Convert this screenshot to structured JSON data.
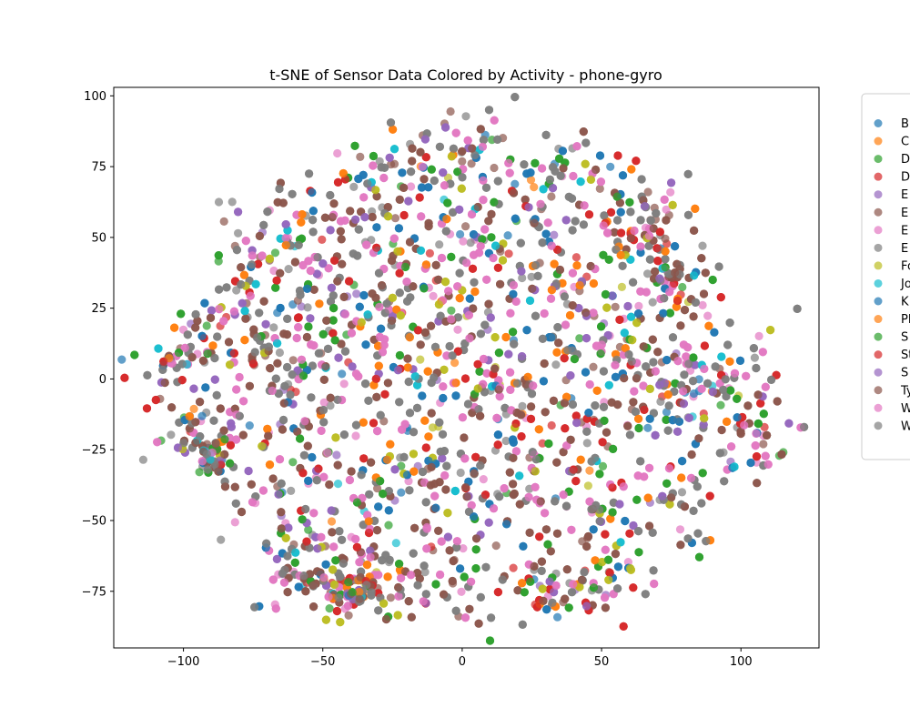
{
  "chart_data": {
    "type": "scatter",
    "title": "t-SNE of Sensor Data Colored by Activity - phone-gyro",
    "xlabel": "",
    "ylabel": "",
    "xlim": [
      -125,
      128
    ],
    "ylim": [
      -95,
      103
    ],
    "xticks": [
      -100,
      -50,
      0,
      50,
      100
    ],
    "yticks": [
      -75,
      -50,
      -25,
      0,
      25,
      50,
      75,
      100
    ],
    "grid": false,
    "legend_position": "right, partially cropped",
    "series": [
      {
        "name": "B",
        "color": "#1f77b4"
      },
      {
        "name": "C",
        "color": "#ff7f0e"
      },
      {
        "name": "D",
        "color": "#2ca02c"
      },
      {
        "name": "D",
        "color": "#d62728"
      },
      {
        "name": "E",
        "color": "#9467bd"
      },
      {
        "name": "E",
        "color": "#8c564b"
      },
      {
        "name": "E",
        "color": "#e377c2"
      },
      {
        "name": "E",
        "color": "#7f7f7f"
      },
      {
        "name": "Fo",
        "color": "#bcbd22"
      },
      {
        "name": "Jo",
        "color": "#17becf"
      },
      {
        "name": "K",
        "color": "#1f77b4"
      },
      {
        "name": "Pl",
        "color": "#ff7f0e"
      },
      {
        "name": "S",
        "color": "#2ca02c"
      },
      {
        "name": "St",
        "color": "#d62728"
      },
      {
        "name": "S",
        "color": "#9467bd"
      },
      {
        "name": "Ty",
        "color": "#8c564b"
      },
      {
        "name": "W",
        "color": "#e377c2"
      },
      {
        "name": "W",
        "color": "#7f7f7f"
      }
    ],
    "clusters": [
      [
        -105,
        3,
        8,
        5
      ],
      [
        -95,
        -20,
        8,
        6
      ],
      [
        -90,
        -28,
        4,
        4
      ],
      [
        -85,
        20,
        10,
        8
      ],
      [
        -75,
        40,
        8,
        8
      ],
      [
        -70,
        10,
        10,
        10
      ],
      [
        -65,
        -15,
        12,
        10
      ],
      [
        -62,
        55,
        8,
        8
      ],
      [
        -60,
        -45,
        10,
        10
      ],
      [
        -55,
        -70,
        10,
        6
      ],
      [
        -50,
        35,
        8,
        10
      ],
      [
        -45,
        0,
        12,
        12
      ],
      [
        -40,
        -55,
        10,
        10
      ],
      [
        -35,
        60,
        10,
        10
      ],
      [
        -30,
        25,
        12,
        12
      ],
      [
        -30,
        -30,
        12,
        12
      ],
      [
        -28,
        -73,
        10,
        5
      ],
      [
        -20,
        75,
        10,
        8
      ],
      [
        -15,
        45,
        12,
        12
      ],
      [
        -15,
        0,
        12,
        12
      ],
      [
        -15,
        -60,
        12,
        12
      ],
      [
        -5,
        20,
        12,
        12
      ],
      [
        0,
        -35,
        14,
        14
      ],
      [
        5,
        82,
        10,
        8
      ],
      [
        5,
        50,
        12,
        12
      ],
      [
        10,
        0,
        12,
        12
      ],
      [
        15,
        -70,
        12,
        8
      ],
      [
        20,
        30,
        14,
        12
      ],
      [
        20,
        -20,
        14,
        14
      ],
      [
        25,
        65,
        12,
        10
      ],
      [
        30,
        -45,
        12,
        12
      ],
      [
        35,
        5,
        14,
        14
      ],
      [
        40,
        -75,
        10,
        6
      ],
      [
        45,
        70,
        10,
        10
      ],
      [
        45,
        40,
        12,
        12
      ],
      [
        45,
        -20,
        12,
        12
      ],
      [
        55,
        -55,
        10,
        10
      ],
      [
        60,
        15,
        12,
        12
      ],
      [
        65,
        -10,
        12,
        12
      ],
      [
        75,
        35,
        8,
        6
      ],
      [
        80,
        -45,
        8,
        8
      ],
      [
        85,
        -5,
        10,
        10
      ],
      [
        95,
        5,
        10,
        10
      ],
      [
        105,
        -20,
        8,
        8
      ],
      [
        65,
        55,
        8,
        8
      ],
      [
        -40,
        -75,
        6,
        4
      ]
    ],
    "point_count": 5200,
    "marker_alpha": 0.7,
    "marker_shape": "circle"
  }
}
